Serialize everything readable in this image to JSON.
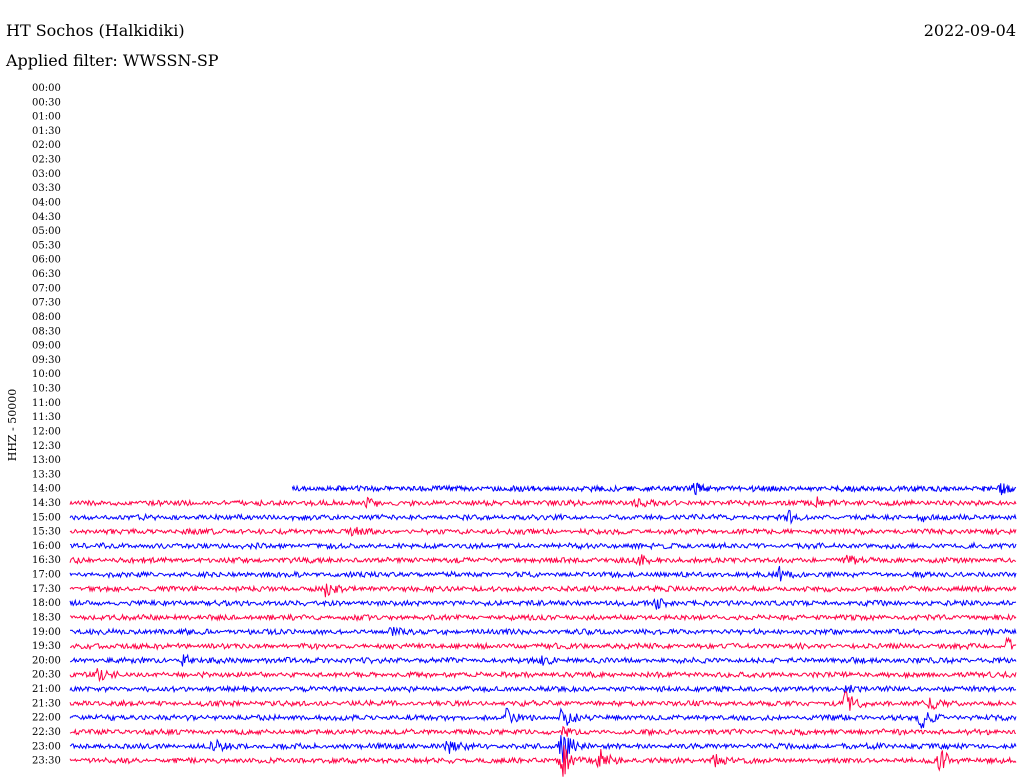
{
  "header": {
    "station": "HT Sochos (Halkidiki)",
    "date": "2022-09-04",
    "filter": "Applied filter: WWSSN-SP"
  },
  "chart_data": {
    "type": "line",
    "title": "HT Sochos (Halkidiki)",
    "subtitle": "Applied filter: WWSSN-SP",
    "ylabel": "HHZ - 50000",
    "y_ticks": [
      "00:00",
      "00:30",
      "01:00",
      "01:30",
      "02:00",
      "02:30",
      "03:00",
      "03:30",
      "04:00",
      "04:30",
      "05:00",
      "05:30",
      "06:00",
      "06:30",
      "07:00",
      "07:30",
      "08:00",
      "08:30",
      "09:00",
      "09:30",
      "10:00",
      "10:30",
      "11:00",
      "11:30",
      "12:00",
      "12:30",
      "13:00",
      "13:30",
      "14:00",
      "14:30",
      "15:00",
      "15:30",
      "16:00",
      "16:30",
      "17:00",
      "17:30",
      "18:00",
      "18:30",
      "19:00",
      "19:30",
      "20:00",
      "20:30",
      "21:00",
      "21:30",
      "22:00",
      "22:30",
      "23:00",
      "23:30"
    ],
    "grid": false,
    "legend": "none",
    "colors": [
      "#0000ff",
      "#ff0044"
    ],
    "trace_start_fraction": {
      "14:00": 0.235
    },
    "events": [
      {
        "row": "14:00",
        "at": 0.66,
        "amp": 5
      },
      {
        "row": "14:00",
        "at": 0.985,
        "amp": 4
      },
      {
        "row": "14:30",
        "at": 0.315,
        "amp": 5
      },
      {
        "row": "14:30",
        "at": 0.6,
        "amp": 4
      },
      {
        "row": "14:30",
        "at": 0.79,
        "amp": 5
      },
      {
        "row": "15:00",
        "at": 0.76,
        "amp": 5
      },
      {
        "row": "15:00",
        "at": 0.9,
        "amp": 5
      },
      {
        "row": "15:30",
        "at": 0.3,
        "amp": 4
      },
      {
        "row": "16:30",
        "at": 0.6,
        "amp": 6
      },
      {
        "row": "16:30",
        "at": 0.82,
        "amp": 5
      },
      {
        "row": "17:00",
        "at": 0.75,
        "amp": 7
      },
      {
        "row": "17:30",
        "at": 0.27,
        "amp": 8
      },
      {
        "row": "18:00",
        "at": 0.62,
        "amp": 6
      },
      {
        "row": "19:00",
        "at": 0.34,
        "amp": 5
      },
      {
        "row": "19:30",
        "at": 0.99,
        "amp": 9
      },
      {
        "row": "20:00",
        "at": 0.12,
        "amp": 5
      },
      {
        "row": "20:00",
        "at": 0.5,
        "amp": 4
      },
      {
        "row": "20:30",
        "at": 0.03,
        "amp": 5
      },
      {
        "row": "21:00",
        "at": 0.82,
        "amp": 5
      },
      {
        "row": "21:30",
        "at": 0.82,
        "amp": 10
      },
      {
        "row": "21:30",
        "at": 0.91,
        "amp": 6
      },
      {
        "row": "22:00",
        "at": 0.46,
        "amp": 9
      },
      {
        "row": "22:00",
        "at": 0.52,
        "amp": 12
      },
      {
        "row": "22:00",
        "at": 0.9,
        "amp": 12
      },
      {
        "row": "22:30",
        "at": 0.52,
        "amp": 5
      },
      {
        "row": "23:00",
        "at": 0.15,
        "amp": 8
      },
      {
        "row": "23:00",
        "at": 0.4,
        "amp": 6
      },
      {
        "row": "23:00",
        "at": 0.52,
        "amp": 22
      },
      {
        "row": "23:30",
        "at": 0.52,
        "amp": 18
      },
      {
        "row": "23:30",
        "at": 0.56,
        "amp": 12
      },
      {
        "row": "23:30",
        "at": 0.68,
        "amp": 8
      },
      {
        "row": "23:30",
        "at": 0.92,
        "amp": 12
      }
    ]
  }
}
